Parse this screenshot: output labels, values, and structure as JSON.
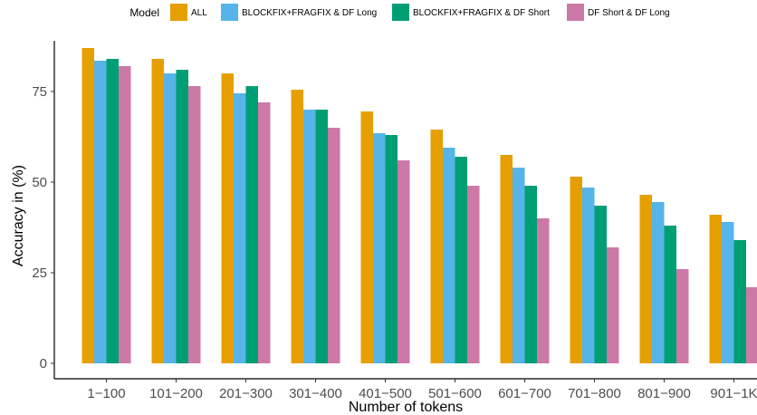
{
  "chart_data": {
    "type": "bar",
    "title": "",
    "xlabel": "Number of tokens",
    "ylabel": "Accuracy in (%)",
    "ylim": [
      0,
      89
    ],
    "yticks": [
      0,
      25,
      50,
      75
    ],
    "grid": false,
    "legend": {
      "title": "Model",
      "position": "top"
    },
    "categories": [
      "1−100",
      "101−200",
      "201−300",
      "301−400",
      "401−500",
      "501−600",
      "601−700",
      "701−800",
      "801−900",
      "901−1K"
    ],
    "series": [
      {
        "name": "ALL",
        "color": "#E69F00",
        "values": [
          87,
          84,
          80,
          75.5,
          69.5,
          64.5,
          57.5,
          51.5,
          46.5,
          41
        ]
      },
      {
        "name": "BLOCKFIX+FRAGFIX & DF Long",
        "color": "#56B4E9",
        "values": [
          83.5,
          80,
          74.5,
          70,
          63.5,
          59.5,
          54,
          48.5,
          44.5,
          39
        ]
      },
      {
        "name": "BLOCKFIX+FRAGFIX & DF Short",
        "color": "#009E73",
        "values": [
          84,
          81,
          76.5,
          70,
          63,
          57,
          49,
          43.5,
          38,
          34
        ]
      },
      {
        "name": "DF Short & DF Long",
        "color": "#CC79A7",
        "values": [
          82,
          76.5,
          72,
          65,
          56,
          49,
          40,
          32,
          26,
          21
        ]
      }
    ]
  }
}
